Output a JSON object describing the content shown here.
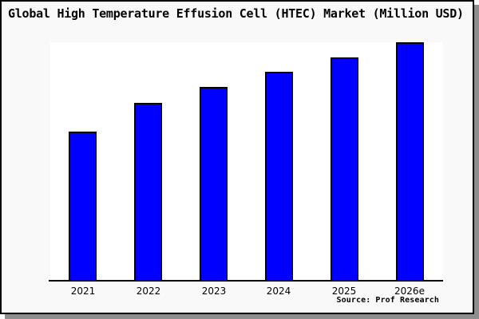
{
  "title": "Global High Temperature Effusion Cell (HTEC) Market (Million USD)",
  "source": "Source: Prof Research",
  "colors": {
    "bar_fill": "#0000ff",
    "bar_border": "#000000",
    "card_background": "#f9f9f9",
    "plot_background": "#ffffff",
    "frame": "#000000",
    "shadow": "#8e8e8e",
    "text": "#000000"
  },
  "chart_data": {
    "type": "bar",
    "title": "Global High Temperature Effusion Cell (HTEC) Market (Million USD)",
    "categories": [
      "2021",
      "2022",
      "2023",
      "2024",
      "2025",
      "2026e"
    ],
    "values": [
      62.7,
      74.7,
      81.3,
      87.7,
      93.7,
      100
    ],
    "value_note": "no y-axis ticks or gridlines shown; values are relative bar heights normalized to 2026e = 100",
    "unit": "Million USD",
    "xlabel": "",
    "ylabel": "",
    "ylim": [
      0,
      100
    ],
    "grid": false,
    "legend": false,
    "y_axis_visible": false,
    "x_axis_visible": true,
    "bar_width_fraction": 0.43,
    "source_label": "Source: Prof Research"
  }
}
